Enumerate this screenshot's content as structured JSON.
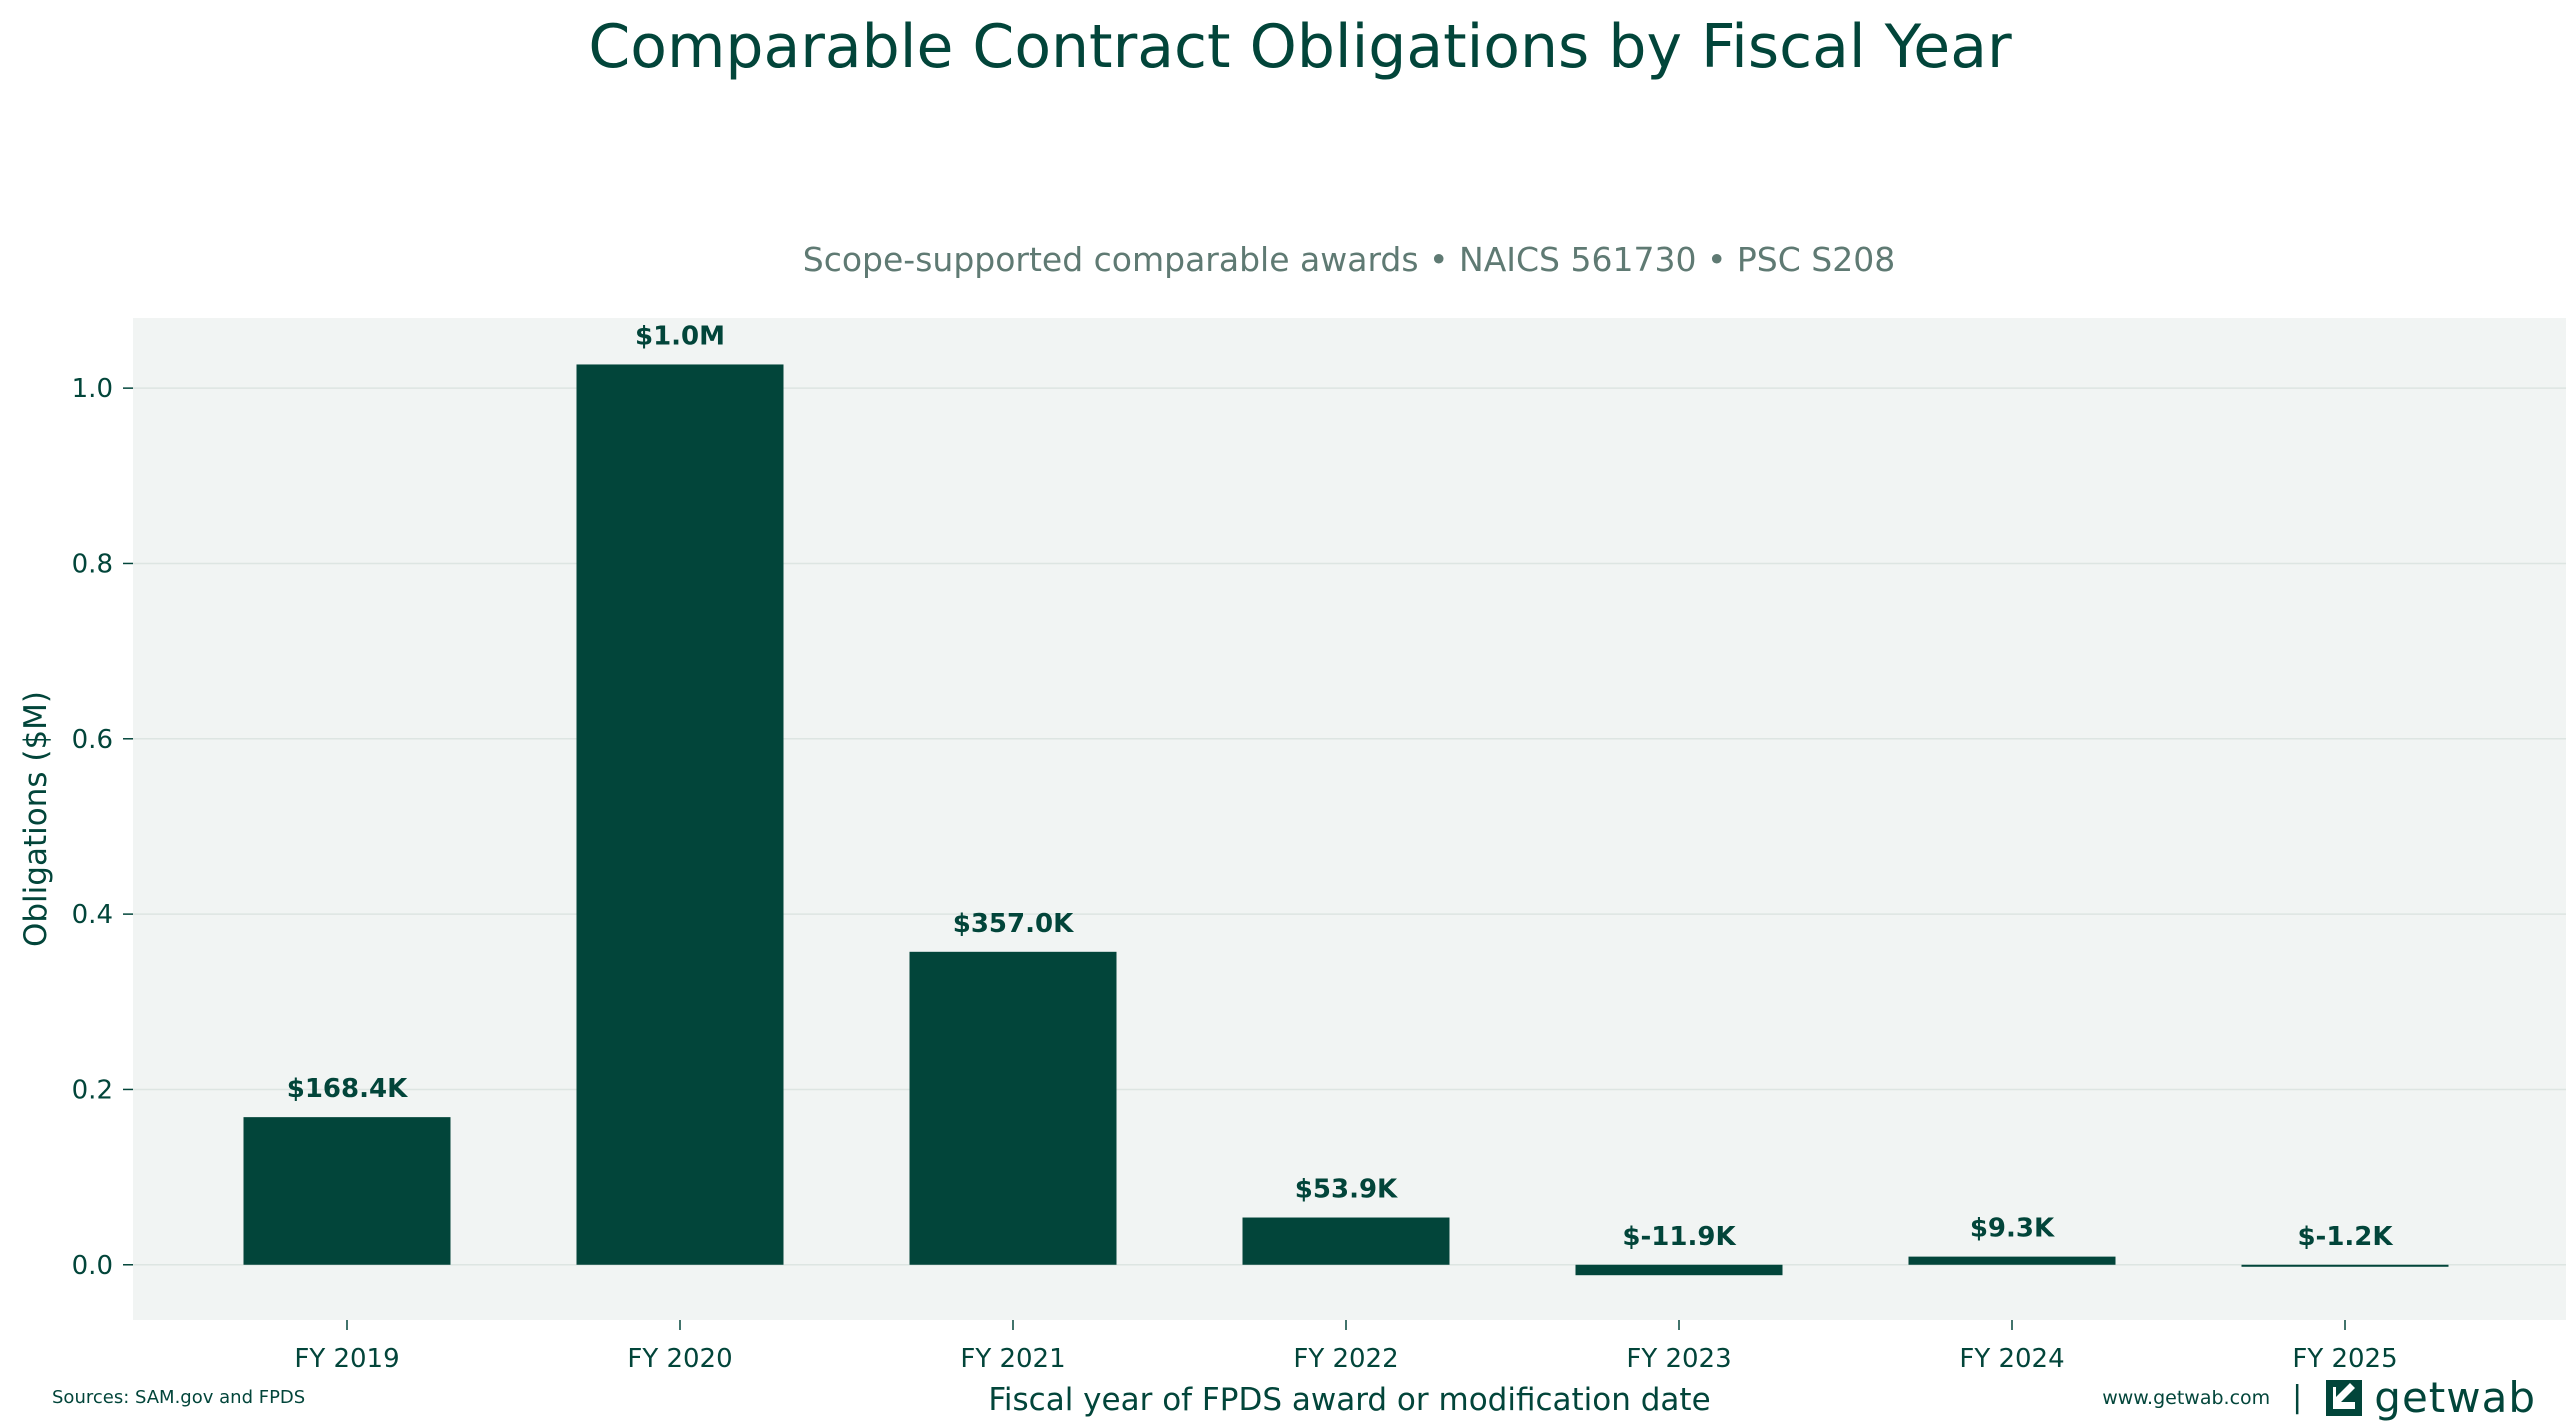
{
  "chart_data": {
    "type": "bar",
    "title": "Comparable Contract Obligations by Fiscal Year",
    "subtitle": "Scope-supported comparable awards • NAICS 561730 • PSC S208",
    "xlabel": "Fiscal year of FPDS award or modification date",
    "ylabel": "Obligations ($M)",
    "categories": [
      "FY 2019",
      "FY 2020",
      "FY 2021",
      "FY 2022",
      "FY 2023",
      "FY 2024",
      "FY 2025"
    ],
    "values": [
      0.1684,
      1.027,
      0.357,
      0.0539,
      -0.0119,
      0.0093,
      -0.0012
    ],
    "data_labels": [
      "$168.4K",
      "$1.0M",
      "$357.0K",
      "$53.9K",
      "$-11.9K",
      "$9.3K",
      "$-1.2K"
    ],
    "yticks": [
      0.0,
      0.2,
      0.4,
      0.6,
      0.8,
      1.0
    ],
    "ytick_labels": [
      "0.0",
      "0.2",
      "0.4",
      "0.6",
      "0.8",
      "1.0"
    ],
    "ylim": [
      -0.063,
      1.08
    ],
    "grid": "horizontal",
    "colors": {
      "bar": "#02453a",
      "plot_bg": "#f1f4f3",
      "grid": "#dde5e2",
      "text": "#02453a"
    }
  },
  "footer": {
    "sources": "Sources: SAM.gov and FPDS",
    "website": "www.getwab.com",
    "separator": "|",
    "brand": "getwab",
    "brand_icon": "getwab-logo-icon"
  }
}
